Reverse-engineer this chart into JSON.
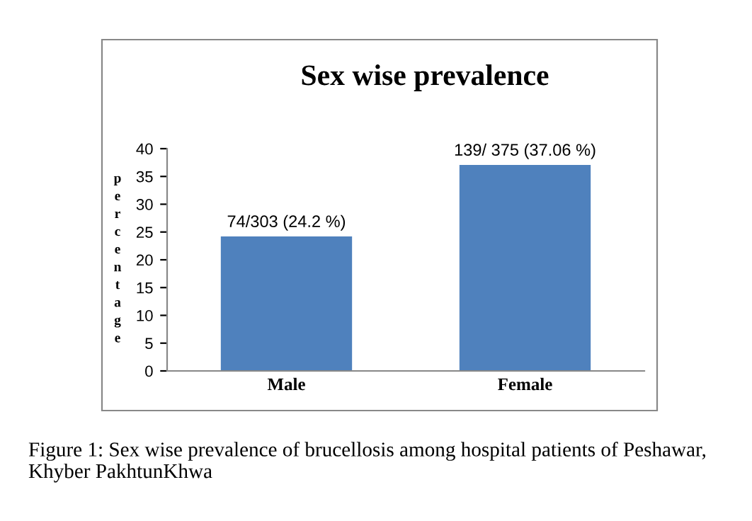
{
  "chart_data": {
    "type": "bar",
    "title": "Sex wise prevalence",
    "ylabel": "percentage",
    "categories": [
      "Male",
      "Female"
    ],
    "values": [
      24.2,
      37.06
    ],
    "value_labels": [
      "74/303 (24.2 %)",
      "139/ 375 (37.06 %)"
    ],
    "color": "#4f81bd",
    "ylim": [
      0,
      40
    ],
    "yticks": [
      0,
      5,
      10,
      15,
      20,
      25,
      30,
      35,
      40
    ],
    "grid": false,
    "legend": false,
    "annotations": [
      "Figure 1: Sex wise prevalence of brucellosis among hospital patients of Peshawar, Khyber PakhtunKhwa"
    ]
  }
}
